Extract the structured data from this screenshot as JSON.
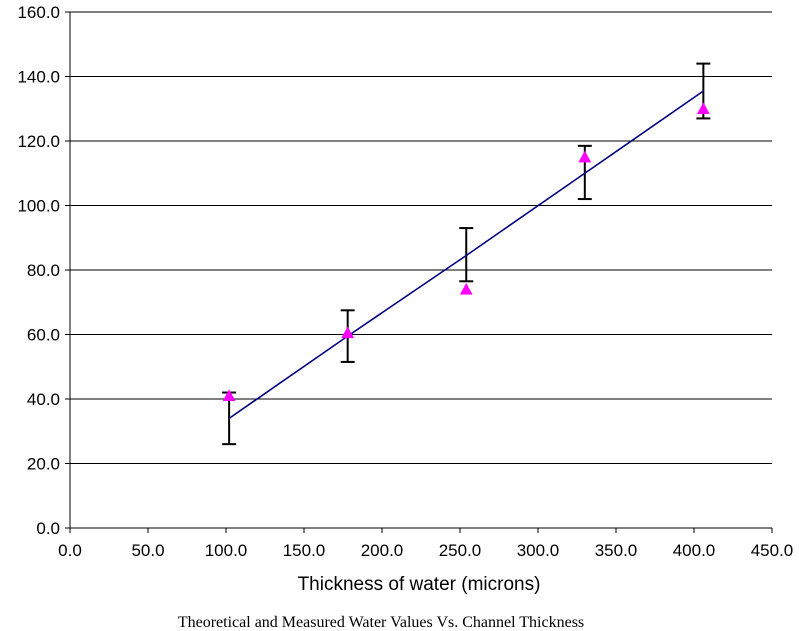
{
  "chart_data": {
    "type": "scatter",
    "title": "",
    "xlabel": "Thickness of water (microns)",
    "ylabel": "",
    "caption": "Theoretical and Measured Water Values Vs. Channel Thickness",
    "xlim": [
      0,
      450
    ],
    "ylim": [
      0,
      160
    ],
    "x_ticks": [
      "0.0",
      "50.0",
      "100.0",
      "150.0",
      "200.0",
      "250.0",
      "300.0",
      "350.0",
      "400.0",
      "450.0"
    ],
    "y_ticks": [
      "0.0",
      "20.0",
      "40.0",
      "60.0",
      "80.0",
      "100.0",
      "120.0",
      "140.0",
      "160.0"
    ],
    "grid": "horizontal",
    "legend": "none",
    "series": [
      {
        "kind": "line-with-error-bars",
        "color": "#000080",
        "x": [
          102,
          178,
          254,
          330,
          406
        ],
        "y": [
          34,
          59.5,
          84.5,
          110,
          135.5
        ],
        "error_low": [
          26,
          51.5,
          76.5,
          102,
          127
        ],
        "error_high": [
          42,
          67.5,
          93,
          118.5,
          144
        ]
      },
      {
        "kind": "scatter",
        "marker": "triangle",
        "color": "#ff00ff",
        "x": [
          102,
          178,
          254,
          330,
          406
        ],
        "y": [
          41,
          60.5,
          74,
          115,
          130
        ]
      }
    ]
  }
}
